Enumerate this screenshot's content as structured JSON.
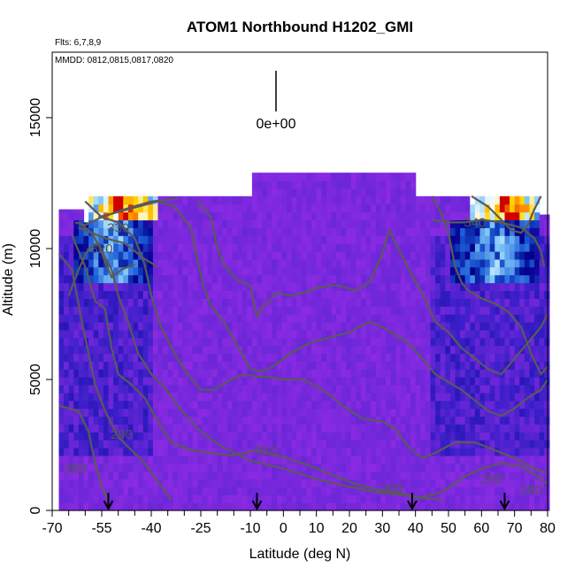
{
  "chart_data": {
    "type": "heatmap",
    "title": "ATOM1 Northbound H1202_GMI",
    "notes": [
      "Flts: 6,7,8,9",
      "MMDD: 0812,0815,0817,0820"
    ],
    "xlabel": "Latitude (deg N)",
    "ylabel": "Altitude (m)",
    "xlim": [
      -70,
      80
    ],
    "ylim": [
      0,
      17500
    ],
    "x_tick_labels": [
      -70,
      -55,
      -40,
      -25,
      -10,
      0,
      10,
      20,
      30,
      40,
      50,
      60,
      70,
      80
    ],
    "x_minor_ticks": [
      -65,
      -60,
      -50,
      -45,
      -35,
      -30,
      -20,
      -15,
      -5,
      5,
      15,
      25,
      35,
      45,
      55,
      65,
      75
    ],
    "y_tick_labels": [
      0,
      5000,
      10000,
      15000
    ],
    "scale_label": "0e+00",
    "background_color": "#8a2be2",
    "colormap": [
      "#8a2be2",
      "#3a1fc8",
      "#00008b",
      "#1e5fd8",
      "#87cefa",
      "#ffffff",
      "#ffd700",
      "#ff8c00",
      "#d00000"
    ],
    "contour_color": "#5a5a5a",
    "contour_labels": [
      {
        "text": "330",
        "lat": -50,
        "alt": 10800
      },
      {
        "text": "320",
        "lat": -55,
        "alt": 10000
      },
      {
        "text": "340",
        "lat": 58,
        "alt": 11000
      },
      {
        "text": "290",
        "lat": -49,
        "alt": 2900
      },
      {
        "text": "280",
        "lat": -63,
        "alt": 1600
      },
      {
        "text": "310",
        "lat": -5,
        "alt": 2300
      },
      {
        "text": "300",
        "lat": 33,
        "alt": 850
      },
      {
        "text": "290",
        "lat": 63,
        "alt": 1200
      },
      {
        "text": "280",
        "lat": 75,
        "alt": 800
      }
    ],
    "flight_arrows_lat": [
      -53,
      -8,
      39,
      67
    ],
    "high_value_regions": [
      {
        "lat": [
          -59,
          -38
        ],
        "alt": [
          11000,
          12000
        ],
        "level": 0.95
      },
      {
        "lat": [
          57,
          78
        ],
        "alt": [
          11000,
          12000
        ],
        "level": 0.95
      },
      {
        "lat": [
          -63,
          -40
        ],
        "alt": [
          8700,
          11000
        ],
        "level": 0.45
      },
      {
        "lat": [
          50,
          78
        ],
        "alt": [
          8700,
          11000
        ],
        "level": 0.45
      }
    ]
  }
}
